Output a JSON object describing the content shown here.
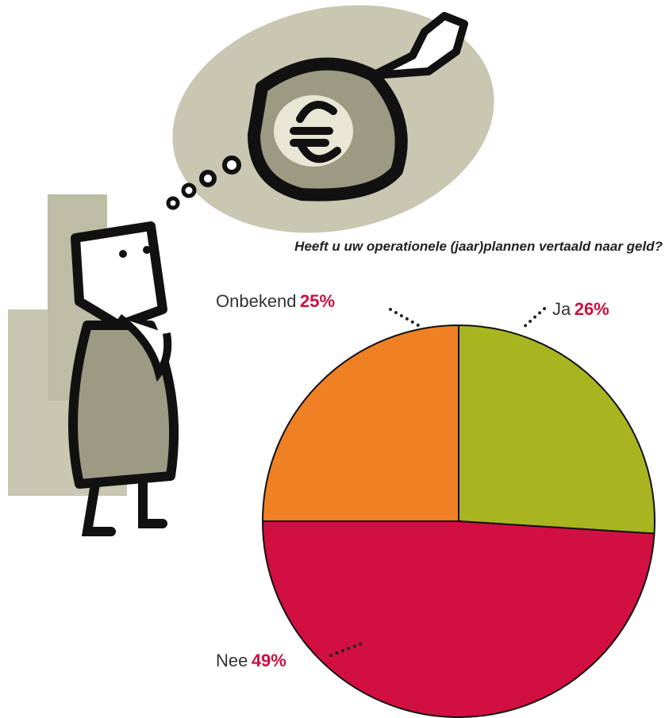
{
  "chart_data": {
    "type": "pie",
    "title": "Heeft u uw operationele (jaar)plannen vertaald naar geld?",
    "categories": [
      "Ja",
      "Nee",
      "Onbekend"
    ],
    "values": [
      26,
      49,
      25
    ],
    "value_labels": [
      "26%",
      "49%",
      "25%"
    ],
    "colors": [
      "#a8b520",
      "#d20f41",
      "#ef8024"
    ]
  }
}
